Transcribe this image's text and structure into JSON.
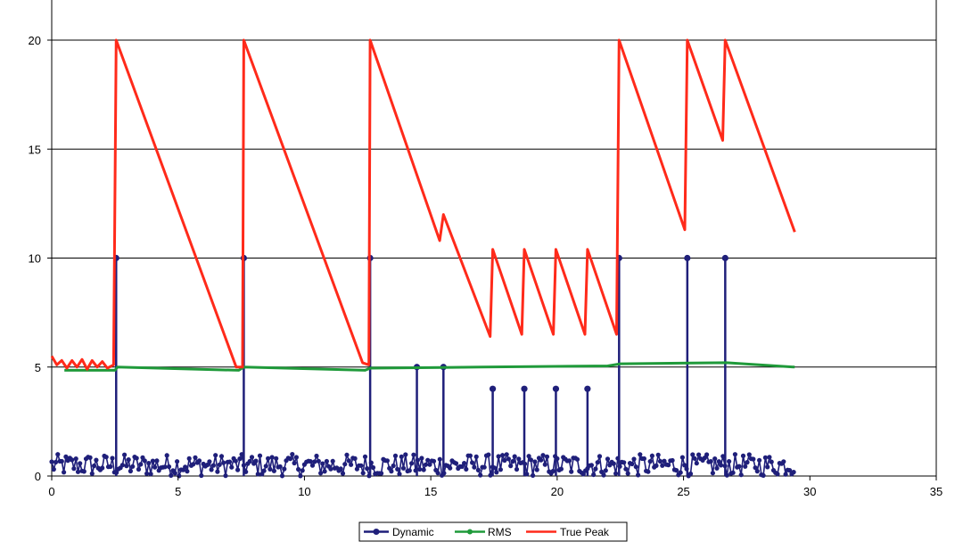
{
  "chart_data": {
    "type": "line",
    "title": "",
    "xlabel": "",
    "ylabel": "",
    "xlim": [
      0,
      35
    ],
    "ylim": [
      0,
      20
    ],
    "x_ticks": [
      "0",
      "5",
      "10",
      "15",
      "20",
      "25",
      "30",
      "35"
    ],
    "y_ticks": [
      "0",
      "5",
      "10",
      "15",
      "20"
    ],
    "grid": "horizontal",
    "legend_position": "bottom",
    "colors": {
      "Dynamic": "#1f1f7a",
      "RMS": "#1f9a3a",
      "True Peak": "#ff2a1a",
      "grid": "#000000"
    },
    "series": [
      {
        "name": "True Peak",
        "points": [
          [
            0.0,
            5.5
          ],
          [
            0.2,
            5.1
          ],
          [
            0.4,
            5.3
          ],
          [
            0.6,
            4.95
          ],
          [
            0.8,
            5.3
          ],
          [
            1.0,
            5.0
          ],
          [
            1.2,
            5.35
          ],
          [
            1.4,
            4.9
          ],
          [
            1.6,
            5.3
          ],
          [
            1.8,
            5.0
          ],
          [
            2.0,
            5.25
          ],
          [
            2.2,
            4.95
          ],
          [
            2.45,
            5.1
          ],
          [
            2.55,
            20.0
          ],
          [
            7.3,
            5.0
          ],
          [
            7.55,
            5.0
          ],
          [
            7.6,
            20.0
          ],
          [
            12.3,
            5.2
          ],
          [
            12.55,
            5.1
          ],
          [
            12.6,
            20.0
          ],
          [
            15.35,
            10.8
          ],
          [
            15.5,
            12.0
          ],
          [
            17.35,
            6.4
          ],
          [
            17.45,
            10.4
          ],
          [
            18.6,
            6.5
          ],
          [
            18.7,
            10.4
          ],
          [
            19.85,
            6.5
          ],
          [
            19.95,
            10.4
          ],
          [
            21.1,
            6.5
          ],
          [
            21.2,
            10.4
          ],
          [
            22.35,
            6.5
          ],
          [
            22.45,
            20.0
          ],
          [
            25.05,
            11.3
          ],
          [
            25.15,
            20.0
          ],
          [
            26.55,
            15.4
          ],
          [
            26.65,
            20.0
          ],
          [
            29.4,
            11.2
          ]
        ]
      },
      {
        "name": "RMS",
        "points": [
          [
            0.5,
            4.85
          ],
          [
            2.5,
            4.85
          ],
          [
            2.6,
            5.0
          ],
          [
            7.4,
            4.85
          ],
          [
            7.6,
            5.0
          ],
          [
            12.4,
            4.85
          ],
          [
            12.6,
            4.95
          ],
          [
            17.0,
            5.0
          ],
          [
            22.0,
            5.05
          ],
          [
            22.5,
            5.15
          ],
          [
            26.7,
            5.2
          ],
          [
            29.4,
            5.0
          ]
        ]
      },
      {
        "name": "Dynamic",
        "spikes": [
          {
            "x": 2.55,
            "y": 10
          },
          {
            "x": 7.6,
            "y": 10
          },
          {
            "x": 12.6,
            "y": 10
          },
          {
            "x": 14.45,
            "y": 5
          },
          {
            "x": 15.5,
            "y": 5
          },
          {
            "x": 17.45,
            "y": 4
          },
          {
            "x": 18.7,
            "y": 4
          },
          {
            "x": 19.95,
            "y": 4
          },
          {
            "x": 21.2,
            "y": 4
          },
          {
            "x": 22.45,
            "y": 10
          },
          {
            "x": 25.15,
            "y": 10
          },
          {
            "x": 26.65,
            "y": 10
          }
        ],
        "noise_range": [
          0.0,
          29.4
        ],
        "noise_max": 1.0
      }
    ],
    "legend": [
      "Dynamic",
      "RMS",
      "True Peak"
    ]
  }
}
